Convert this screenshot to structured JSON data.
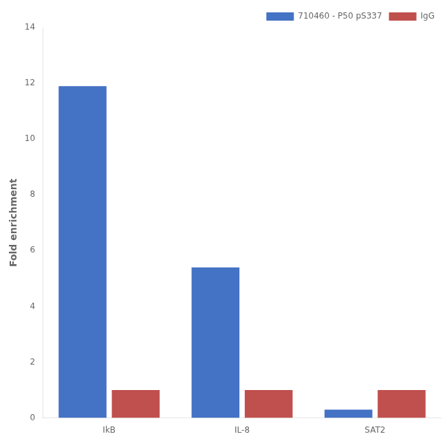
{
  "chart_data": {
    "type": "bar",
    "categories": [
      "IkB",
      "IL-8",
      "SAT2"
    ],
    "series": [
      {
        "name": "710460 - P50 pS337",
        "color": "#4472C4",
        "values": [
          11.9,
          5.4,
          0.3
        ]
      },
      {
        "name": "IgG",
        "color": "#C0504D",
        "values": [
          1.0,
          1.0,
          1.0
        ]
      }
    ],
    "ylabel": "Fold enrichment",
    "ylim": [
      0,
      14
    ],
    "yticks": [
      0,
      2,
      4,
      6,
      8,
      10,
      12,
      14
    ],
    "grid": false,
    "legend": "upper right"
  }
}
